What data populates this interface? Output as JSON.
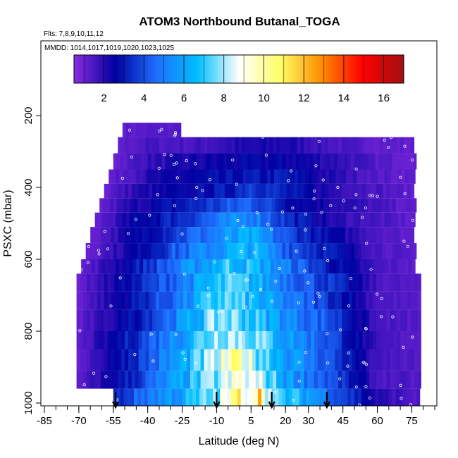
{
  "chart_data": {
    "type": "heatmap",
    "title": "ATOM3 Northbound Butanal_TOGA",
    "subtitle_flights": "Flts: 7,8,9,10,11,12",
    "subtitle_dates": "MMDD: 1014,1017,1019,1020,1023,1025",
    "xlabel": "Latitude (deg N)",
    "ylabel": "PSXC (mbar)",
    "xlim": [
      -85,
      85
    ],
    "ylim": [
      1000,
      0
    ],
    "x_ticks": [
      -85,
      -70,
      -55,
      -40,
      -25,
      -10,
      5,
      20,
      30,
      45,
      60,
      75
    ],
    "x_tick_labels": [
      "-85",
      "-70",
      "-55",
      "-40",
      "-25",
      "-10",
      "5",
      "20",
      "30",
      "45",
      "60",
      "75"
    ],
    "y_ticks": [
      200,
      400,
      600,
      800,
      1000
    ],
    "y_tick_labels": [
      "200",
      "400",
      "600",
      "800",
      "1000"
    ],
    "colorbar": {
      "range": [
        0.5,
        17
      ],
      "ticks": [
        2,
        4,
        6,
        8,
        10,
        12,
        14,
        16
      ],
      "tick_labels": [
        "2",
        "4",
        "6",
        "8",
        "10",
        "12",
        "14",
        "16"
      ],
      "stops": [
        "#8a2be2",
        "#0000a0",
        "#1e6fff",
        "#00bfff",
        "#ffffff",
        "#ffff66",
        "#ff8c00",
        "#ff0000",
        "#a01010"
      ]
    },
    "arrows_lat": [
      -54,
      -10,
      14,
      38
    ],
    "grid": false,
    "bands": [
      {
        "p_top": 220,
        "p_bot": 260,
        "lat_min": -51,
        "lat_max": -26,
        "values": [
          {
            "lat": -51,
            "v": 1.2
          },
          {
            "lat": -26,
            "v": 1.3
          }
        ]
      },
      {
        "p_top": 260,
        "p_bot": 305,
        "lat_min": -53,
        "lat_max": 76,
        "values": [
          {
            "lat": -53,
            "v": 1.1
          },
          {
            "lat": -40,
            "v": 1.5
          },
          {
            "lat": -20,
            "v": 1.5
          },
          {
            "lat": 0,
            "v": 2.0
          },
          {
            "lat": 20,
            "v": 2.2
          },
          {
            "lat": 40,
            "v": 1.5
          },
          {
            "lat": 60,
            "v": 1.2
          },
          {
            "lat": 76,
            "v": 1.1
          }
        ]
      },
      {
        "p_top": 305,
        "p_bot": 350,
        "lat_min": -55,
        "lat_max": 76,
        "values": [
          {
            "lat": -55,
            "v": 1.0
          },
          {
            "lat": -40,
            "v": 1.8
          },
          {
            "lat": -20,
            "v": 2.2
          },
          {
            "lat": 0,
            "v": 2.5
          },
          {
            "lat": 20,
            "v": 2.5
          },
          {
            "lat": 40,
            "v": 2.0
          },
          {
            "lat": 60,
            "v": 1.3
          },
          {
            "lat": 76,
            "v": 1.1
          }
        ]
      },
      {
        "p_top": 350,
        "p_bot": 390,
        "lat_min": -57,
        "lat_max": 76,
        "values": [
          {
            "lat": -57,
            "v": 1.0
          },
          {
            "lat": -40,
            "v": 2.0
          },
          {
            "lat": -20,
            "v": 2.5
          },
          {
            "lat": 0,
            "v": 2.8
          },
          {
            "lat": 20,
            "v": 3.0
          },
          {
            "lat": 40,
            "v": 2.0
          },
          {
            "lat": 60,
            "v": 1.3
          },
          {
            "lat": 76,
            "v": 1.1
          }
        ]
      },
      {
        "p_top": 390,
        "p_bot": 430,
        "lat_min": -59,
        "lat_max": 76,
        "values": [
          {
            "lat": -59,
            "v": 1.0
          },
          {
            "lat": -45,
            "v": 2.0
          },
          {
            "lat": -25,
            "v": 2.5
          },
          {
            "lat": -5,
            "v": 3.0
          },
          {
            "lat": 5,
            "v": 4.0
          },
          {
            "lat": 20,
            "v": 3.0
          },
          {
            "lat": 40,
            "v": 2.0
          },
          {
            "lat": 60,
            "v": 1.5
          },
          {
            "lat": 76,
            "v": 1.1
          }
        ]
      },
      {
        "p_top": 430,
        "p_bot": 470,
        "lat_min": -61,
        "lat_max": 76,
        "values": [
          {
            "lat": -61,
            "v": 1.0
          },
          {
            "lat": -45,
            "v": 2.2
          },
          {
            "lat": -25,
            "v": 3.0
          },
          {
            "lat": -5,
            "v": 4.0
          },
          {
            "lat": 5,
            "v": 4.5
          },
          {
            "lat": 20,
            "v": 3.0
          },
          {
            "lat": 40,
            "v": 2.2
          },
          {
            "lat": 60,
            "v": 1.5
          },
          {
            "lat": 76,
            "v": 1.1
          }
        ]
      },
      {
        "p_top": 470,
        "p_bot": 510,
        "lat_min": -63,
        "lat_max": 76,
        "values": [
          {
            "lat": -63,
            "v": 1.0
          },
          {
            "lat": -45,
            "v": 2.5
          },
          {
            "lat": -25,
            "v": 3.5
          },
          {
            "lat": -5,
            "v": 5.0
          },
          {
            "lat": 5,
            "v": 5.5
          },
          {
            "lat": 20,
            "v": 3.5
          },
          {
            "lat": 40,
            "v": 2.0
          },
          {
            "lat": 60,
            "v": 1.5
          },
          {
            "lat": 76,
            "v": 1.1
          }
        ]
      },
      {
        "p_top": 510,
        "p_bot": 555,
        "lat_min": -65,
        "lat_max": 76,
        "values": [
          {
            "lat": -65,
            "v": 1.0
          },
          {
            "lat": -45,
            "v": 2.5
          },
          {
            "lat": -25,
            "v": 4.0
          },
          {
            "lat": -5,
            "v": 5.5
          },
          {
            "lat": 5,
            "v": 6.0
          },
          {
            "lat": 20,
            "v": 4.0
          },
          {
            "lat": 40,
            "v": 2.5
          },
          {
            "lat": 60,
            "v": 1.5
          },
          {
            "lat": 76,
            "v": 1.1
          }
        ]
      },
      {
        "p_top": 555,
        "p_bot": 600,
        "lat_min": -67,
        "lat_max": 76,
        "values": [
          {
            "lat": -67,
            "v": 1.0
          },
          {
            "lat": -45,
            "v": 2.5
          },
          {
            "lat": -25,
            "v": 4.5
          },
          {
            "lat": -5,
            "v": 6.0
          },
          {
            "lat": 5,
            "v": 6.5
          },
          {
            "lat": 20,
            "v": 4.5
          },
          {
            "lat": 40,
            "v": 3.0
          },
          {
            "lat": 60,
            "v": 1.5
          },
          {
            "lat": 76,
            "v": 1.1
          }
        ]
      },
      {
        "p_top": 600,
        "p_bot": 640,
        "lat_min": -69,
        "lat_max": 76,
        "values": [
          {
            "lat": -69,
            "v": 1.0
          },
          {
            "lat": -45,
            "v": 3.0
          },
          {
            "lat": -25,
            "v": 5.0
          },
          {
            "lat": -5,
            "v": 7.0
          },
          {
            "lat": 5,
            "v": 6.5
          },
          {
            "lat": 20,
            "v": 5.0
          },
          {
            "lat": 40,
            "v": 3.0
          },
          {
            "lat": 60,
            "v": 1.5
          },
          {
            "lat": 76,
            "v": 1.2
          }
        ]
      },
      {
        "p_top": 640,
        "p_bot": 690,
        "lat_min": -71,
        "lat_max": 78,
        "values": [
          {
            "lat": -71,
            "v": 1.0
          },
          {
            "lat": -45,
            "v": 3.0
          },
          {
            "lat": -25,
            "v": 5.0
          },
          {
            "lat": -5,
            "v": 7.0
          },
          {
            "lat": 5,
            "v": 6.5
          },
          {
            "lat": 20,
            "v": 5.0
          },
          {
            "lat": 40,
            "v": 3.5
          },
          {
            "lat": 60,
            "v": 1.5
          },
          {
            "lat": 78,
            "v": 1.2
          }
        ]
      },
      {
        "p_top": 690,
        "p_bot": 740,
        "lat_min": -71,
        "lat_max": 78,
        "values": [
          {
            "lat": -71,
            "v": 1.0
          },
          {
            "lat": -45,
            "v": 3.0
          },
          {
            "lat": -25,
            "v": 5.0
          },
          {
            "lat": -8,
            "v": 7.5
          },
          {
            "lat": 5,
            "v": 6.5
          },
          {
            "lat": 20,
            "v": 5.0
          },
          {
            "lat": 40,
            "v": 3.5
          },
          {
            "lat": 60,
            "v": 1.5
          },
          {
            "lat": 78,
            "v": 1.2
          }
        ]
      },
      {
        "p_top": 740,
        "p_bot": 800,
        "lat_min": -71,
        "lat_max": 78,
        "values": [
          {
            "lat": -71,
            "v": 1.0
          },
          {
            "lat": -45,
            "v": 3.0
          },
          {
            "lat": -25,
            "v": 5.5
          },
          {
            "lat": -8,
            "v": 8.0
          },
          {
            "lat": 5,
            "v": 7.0
          },
          {
            "lat": 20,
            "v": 5.5
          },
          {
            "lat": 40,
            "v": 4.0
          },
          {
            "lat": 60,
            "v": 1.5
          },
          {
            "lat": 78,
            "v": 1.3
          }
        ]
      },
      {
        "p_top": 800,
        "p_bot": 850,
        "lat_min": -71,
        "lat_max": 78,
        "values": [
          {
            "lat": -71,
            "v": 1.0
          },
          {
            "lat": -45,
            "v": 3.5
          },
          {
            "lat": -25,
            "v": 6.0
          },
          {
            "lat": -8,
            "v": 8.5
          },
          {
            "lat": 5,
            "v": 8.0
          },
          {
            "lat": 20,
            "v": 6.0
          },
          {
            "lat": 40,
            "v": 4.0
          },
          {
            "lat": 60,
            "v": 1.5
          },
          {
            "lat": 78,
            "v": 1.3
          }
        ]
      },
      {
        "p_top": 850,
        "p_bot": 910,
        "lat_min": -71,
        "lat_max": 78,
        "values": [
          {
            "lat": -71,
            "v": 1.0
          },
          {
            "lat": -45,
            "v": 3.5
          },
          {
            "lat": -25,
            "v": 6.0
          },
          {
            "lat": -8,
            "v": 8.5
          },
          {
            "lat": 0,
            "v": 10.0
          },
          {
            "lat": 5,
            "v": 8.5
          },
          {
            "lat": 20,
            "v": 6.0
          },
          {
            "lat": 40,
            "v": 4.0
          },
          {
            "lat": 60,
            "v": 1.5
          },
          {
            "lat": 78,
            "v": 1.3
          }
        ]
      },
      {
        "p_top": 910,
        "p_bot": 960,
        "lat_min": -71,
        "lat_max": 78,
        "values": [
          {
            "lat": -71,
            "v": 1.0
          },
          {
            "lat": -45,
            "v": 3.5
          },
          {
            "lat": -25,
            "v": 6.0
          },
          {
            "lat": -8,
            "v": 8.0
          },
          {
            "lat": 0,
            "v": 9.0
          },
          {
            "lat": 10,
            "v": 8.0
          },
          {
            "lat": 20,
            "v": 6.0
          },
          {
            "lat": 40,
            "v": 4.0
          },
          {
            "lat": 60,
            "v": 1.5
          },
          {
            "lat": 78,
            "v": 1.3
          }
        ]
      },
      {
        "p_top": 960,
        "p_bot": 1010,
        "lat_min": -55,
        "lat_max": 78,
        "values": [
          {
            "lat": -55,
            "v": 3.0
          },
          {
            "lat": -40,
            "v": 5.0
          },
          {
            "lat": -25,
            "v": 6.0
          },
          {
            "lat": -8,
            "v": 8.0
          },
          {
            "lat": 0,
            "v": 10.5
          },
          {
            "lat": 5,
            "v": 9.0
          },
          {
            "lat": 8,
            "v": 12.0
          },
          {
            "lat": 15,
            "v": 7.0
          },
          {
            "lat": 30,
            "v": 6.0
          },
          {
            "lat": 45,
            "v": 4.0
          },
          {
            "lat": 60,
            "v": 2.0
          },
          {
            "lat": 78,
            "v": 1.3
          }
        ]
      }
    ]
  }
}
